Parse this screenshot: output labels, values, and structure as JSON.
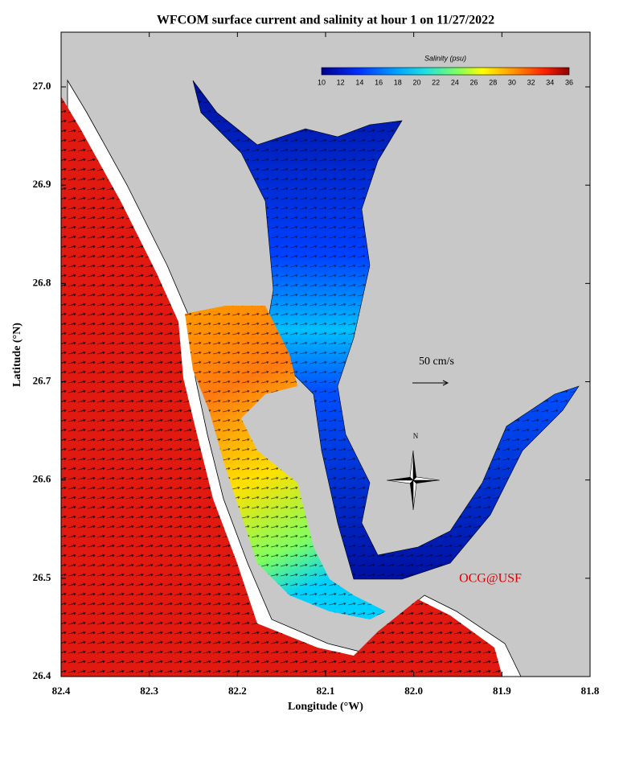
{
  "title": "WFCOM surface current and salinity at hour 1 on 11/27/2022",
  "x_axis": {
    "label": "Longitude (°W)",
    "ticks": [
      "82.4",
      "82.3",
      "82.2",
      "82.1",
      "82.0",
      "81.9",
      "81.8"
    ]
  },
  "y_axis": {
    "label": "Latitude (°N)",
    "ticks": [
      "26.4",
      "26.5",
      "26.6",
      "26.7",
      "26.8",
      "26.9",
      "27.0"
    ]
  },
  "colorbar": {
    "label": "Salinity (psu)",
    "ticks": [
      "10",
      "12",
      "14",
      "16",
      "18",
      "20",
      "22",
      "24",
      "26",
      "28",
      "30",
      "32",
      "34",
      "36"
    ]
  },
  "scale_label": "50 cm/s",
  "compass_label": "N",
  "credit": "OCG@USF"
}
